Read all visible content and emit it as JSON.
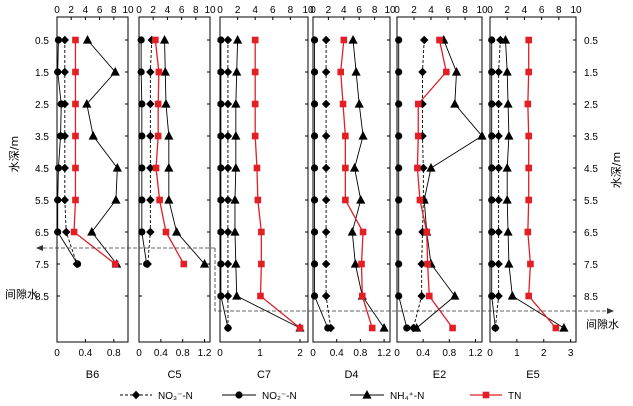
{
  "chart_data": {
    "type": "line",
    "depth_axis_label": "水深/m",
    "depth_ticks": [
      "0.5",
      "1.5",
      "2.5",
      "3.5",
      "4.5",
      "5.5",
      "6.5",
      "7.5",
      "8.5"
    ],
    "pore_water_label": "间隙水",
    "top_axis_ticks": [
      "0",
      "2",
      "4",
      "6",
      "8",
      "10"
    ],
    "top_axis_range": [
      0,
      10
    ],
    "legend": [
      {
        "label": "NO₃⁻-N",
        "marker": "diamond",
        "line": "dashed",
        "color": "#000000"
      },
      {
        "label": "NO₂⁻-N",
        "marker": "circle",
        "line": "solid",
        "color": "#000000"
      },
      {
        "label": "NH₄⁺-N",
        "marker": "triangle",
        "line": "solid",
        "color": "#000000"
      },
      {
        "label": "TN",
        "marker": "square",
        "line": "solid",
        "color": "#e31e24"
      }
    ],
    "panels": [
      {
        "name": "B6",
        "depths": [
          0.5,
          1.5,
          2.5,
          3.5,
          4.5,
          5.5,
          6.5
        ],
        "bottom_axis_ticks": [
          "0",
          "0.4",
          "0.8"
        ],
        "bottom_axis_range": [
          0,
          1.0
        ],
        "pore_depth": 7.5,
        "series": {
          "no3": [
            1.1,
            1.1,
            1.1,
            1.1,
            1.1,
            1.1,
            1.3
          ],
          "no2": [
            0.2,
            0.1,
            0.6,
            0.5,
            0.2,
            0.1,
            0.1
          ],
          "nh4": [
            4.3,
            8.2,
            4.2,
            5.1,
            8.5,
            8.3,
            4.9
          ],
          "tn": [
            2.6,
            2.6,
            2.6,
            2.6,
            2.6,
            2.6,
            2.4
          ]
        },
        "pore": {
          "no3": 0.28,
          "no2": 0.29,
          "nh4": 0.84,
          "tn": 0.82
        }
      },
      {
        "name": "C5",
        "depths": [
          0.5,
          1.5,
          2.5,
          3.5,
          4.5,
          5.5,
          6.5
        ],
        "bottom_axis_ticks": [
          "0",
          "0.4",
          "0.8",
          "1.2"
        ],
        "bottom_axis_range": [
          0,
          1.3
        ],
        "pore_depth": 7.5,
        "series": {
          "no3": [
            1.8,
            1.6,
            1.6,
            1.6,
            1.6,
            1.6,
            1.6
          ],
          "no2": [
            0.3,
            0.3,
            0.4,
            0.4,
            0.4,
            0.4,
            0.4
          ],
          "nh4": [
            3.6,
            3.7,
            3.8,
            4.2,
            4.2,
            4.2,
            5.3
          ],
          "tn": [
            2.3,
            2.8,
            2.7,
            2.7,
            2.4,
            2.9,
            3.8
          ]
        },
        "pore": {
          "no3": 0.16,
          "no2": 0.14,
          "nh4": 1.2,
          "tn": 0.82
        }
      },
      {
        "name": "C7",
        "depths": [
          0.5,
          1.5,
          2.5,
          3.5,
          4.5,
          5.5,
          6.5,
          7.5,
          8.5
        ],
        "bottom_axis_ticks": [
          "0",
          "1",
          "2"
        ],
        "bottom_axis_range": [
          0,
          2.2
        ],
        "pore_depth": 9.5,
        "series": {
          "no3": [
            0.9,
            0.9,
            0.9,
            0.9,
            0.9,
            0.9,
            0.9,
            0.9,
            0.9
          ],
          "no2": [
            0.1,
            0.1,
            0.1,
            0.1,
            0.1,
            0.1,
            0.1,
            0.1,
            0.1
          ],
          "nh4": [
            2.0,
            1.9,
            1.8,
            1.8,
            1.8,
            1.7,
            1.7,
            1.8,
            1.9
          ],
          "tn": [
            4.0,
            4.0,
            4.0,
            4.0,
            4.2,
            4.3,
            4.7,
            4.7,
            4.6
          ]
        },
        "pore": {
          "no3": 0.2,
          "no2": 0.2,
          "nh4": 2.0,
          "tn": 2.0
        }
      },
      {
        "name": "D4",
        "depths": [
          0.5,
          1.5,
          2.5,
          3.5,
          4.5,
          5.5,
          6.5,
          7.5,
          8.5
        ],
        "bottom_axis_ticks": [
          "0",
          "0.4",
          "0.8",
          "1.2"
        ],
        "bottom_axis_range": [
          0,
          1.3
        ],
        "pore_depth": 9.5,
        "series": {
          "no3": [
            1.7,
            1.7,
            1.7,
            1.7,
            1.7,
            1.7,
            1.7,
            1.7,
            1.7
          ],
          "no2": [
            0.2,
            0.2,
            0.2,
            0.2,
            0.2,
            0.2,
            0.2,
            0.2,
            0.2
          ],
          "nh4": [
            5.2,
            5.6,
            6.0,
            6.5,
            5.4,
            6.2,
            5.1,
            5.5,
            6.4
          ],
          "tn": [
            4.0,
            3.6,
            3.9,
            4.2,
            4.2,
            4.2,
            6.5,
            6.3,
            6.4
          ]
        },
        "pore": {
          "no3": 0.3,
          "no2": 0.25,
          "nh4": 1.2,
          "tn": 1.0
        }
      },
      {
        "name": "E2",
        "depths": [
          0.5,
          1.5,
          2.5,
          3.5,
          4.5,
          5.5,
          6.5,
          7.5,
          8.5
        ],
        "bottom_axis_ticks": [
          "0",
          "0.4",
          "0.8",
          "1.2"
        ],
        "bottom_axis_range": [
          0,
          1.3
        ],
        "pore_depth": 9.5,
        "series": {
          "no3": [
            3.2,
            3.0,
            3.0,
            3.0,
            3.1,
            3.1,
            3.0,
            2.9,
            2.9
          ],
          "no2": [
            0.2,
            0.2,
            0.2,
            0.2,
            0.2,
            0.2,
            0.2,
            0.2,
            0.2
          ],
          "nh4": [
            5.5,
            7.0,
            6.8,
            10.0,
            4.0,
            3.2,
            3.5,
            4.0,
            6.8
          ],
          "tn": [
            5.0,
            5.8,
            2.5,
            2.5,
            2.4,
            2.7,
            3.5,
            3.6,
            3.8
          ]
        },
        "pore": {
          "no3": 0.25,
          "no2": 0.15,
          "nh4": 0.3,
          "tn": 0.85
        }
      },
      {
        "name": "E5",
        "depths": [
          0.5,
          1.5,
          2.5,
          3.5,
          4.5,
          5.5,
          6.5,
          7.5,
          8.5
        ],
        "bottom_axis_ticks": [
          "0",
          "1",
          "2",
          "3"
        ],
        "bottom_axis_range": [
          0,
          3.2
        ],
        "pore_depth": 9.5,
        "series": {
          "no3": [
            1.2,
            1.0,
            1.0,
            1.0,
            1.0,
            1.0,
            1.0,
            1.0,
            1.0
          ],
          "no2": [
            0.2,
            0.2,
            0.2,
            0.2,
            0.2,
            0.2,
            0.2,
            0.2,
            0.2
          ],
          "nh4": [
            1.8,
            2.0,
            2.1,
            2.2,
            2.0,
            2.0,
            2.1,
            2.2,
            2.6
          ],
          "tn": [
            4.5,
            4.5,
            4.4,
            4.5,
            4.5,
            4.5,
            4.4,
            4.7,
            4.5
          ]
        },
        "pore": {
          "no3": 0.2,
          "no2": 0.2,
          "nh4": 2.75,
          "tn": 2.45
        }
      }
    ]
  }
}
